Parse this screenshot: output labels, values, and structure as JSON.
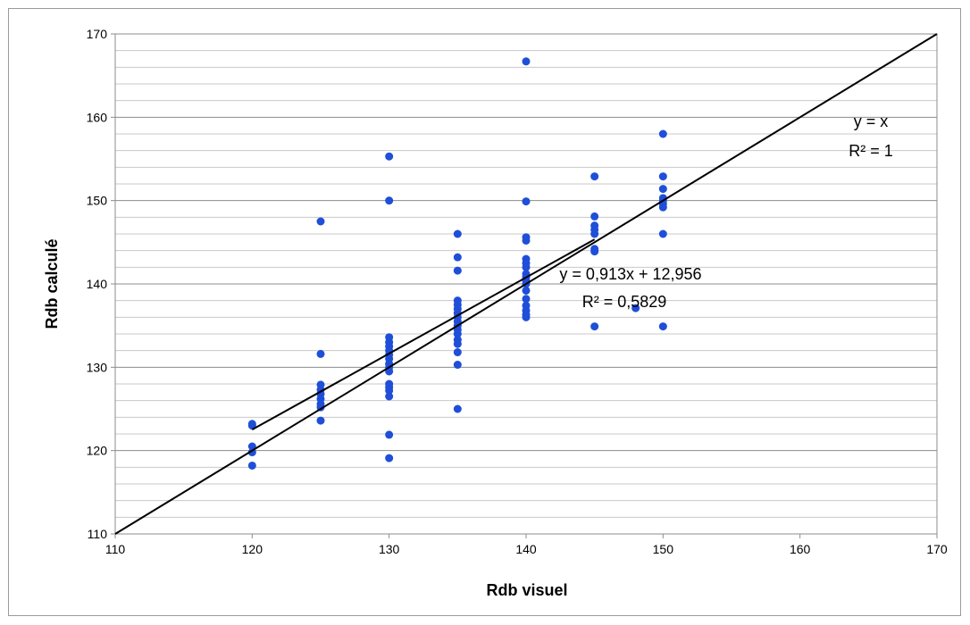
{
  "chart_data": {
    "type": "scatter",
    "xlabel": "Rdb visuel",
    "ylabel": "Rdb calculé",
    "xlim": [
      110,
      170
    ],
    "ylim": [
      110,
      170
    ],
    "x_ticks": [
      "110",
      "120",
      "130",
      "140",
      "150",
      "160",
      "170"
    ],
    "y_ticks": [
      "110",
      "120",
      "130",
      "140",
      "150",
      "160",
      "170"
    ],
    "y_major_step": 10,
    "y_minor_step": 2,
    "grid": true,
    "point_color": "#1f4fd8",
    "line_color": "#000000",
    "points": [
      [
        120,
        123.2
      ],
      [
        120,
        123.0
      ],
      [
        120,
        120.5
      ],
      [
        120,
        119.8
      ],
      [
        120,
        118.2
      ],
      [
        125,
        147.5
      ],
      [
        125,
        131.6
      ],
      [
        125,
        127.9
      ],
      [
        125,
        127.3
      ],
      [
        125,
        126.8
      ],
      [
        125,
        126.2
      ],
      [
        125,
        125.6
      ],
      [
        125,
        125.2
      ],
      [
        125,
        123.6
      ],
      [
        130,
        155.3
      ],
      [
        130,
        150.0
      ],
      [
        130,
        133.6
      ],
      [
        130,
        133.0
      ],
      [
        130,
        132.5
      ],
      [
        130,
        132.0
      ],
      [
        130,
        131.5
      ],
      [
        130,
        131.0
      ],
      [
        130,
        130.4
      ],
      [
        130,
        130.0
      ],
      [
        130,
        129.5
      ],
      [
        130,
        128.0
      ],
      [
        130,
        127.6
      ],
      [
        130,
        127.2
      ],
      [
        130,
        126.5
      ],
      [
        130,
        121.9
      ],
      [
        130,
        119.1
      ],
      [
        135,
        146.0
      ],
      [
        135,
        143.2
      ],
      [
        135,
        141.6
      ],
      [
        135,
        138.0
      ],
      [
        135,
        137.5
      ],
      [
        135,
        137.0
      ],
      [
        135,
        136.5
      ],
      [
        135,
        136.0
      ],
      [
        135,
        135.5
      ],
      [
        135,
        135.0
      ],
      [
        135,
        134.5
      ],
      [
        135,
        134.0
      ],
      [
        135,
        133.3
      ],
      [
        135,
        132.8
      ],
      [
        135,
        131.8
      ],
      [
        135,
        130.3
      ],
      [
        135,
        125.0
      ],
      [
        140,
        166.7
      ],
      [
        140,
        149.9
      ],
      [
        140,
        145.6
      ],
      [
        140,
        145.2
      ],
      [
        140,
        143.0
      ],
      [
        140,
        142.5
      ],
      [
        140,
        142.0
      ],
      [
        140,
        141.2
      ],
      [
        140,
        140.8
      ],
      [
        140,
        140.4
      ],
      [
        140,
        140.0
      ],
      [
        140,
        139.2
      ],
      [
        140,
        138.2
      ],
      [
        140,
        137.4
      ],
      [
        140,
        136.8
      ],
      [
        140,
        136.3
      ],
      [
        140,
        136.0
      ],
      [
        145,
        152.9
      ],
      [
        145,
        148.1
      ],
      [
        145,
        147.0
      ],
      [
        145,
        146.5
      ],
      [
        145,
        146.0
      ],
      [
        145,
        144.2
      ],
      [
        145,
        143.9
      ],
      [
        145,
        134.9
      ],
      [
        148,
        137.1
      ],
      [
        150,
        158.0
      ],
      [
        150,
        152.9
      ],
      [
        150,
        151.4
      ],
      [
        150,
        150.3
      ],
      [
        150,
        150.0
      ],
      [
        150,
        149.6
      ],
      [
        150,
        149.2
      ],
      [
        150,
        146.0
      ],
      [
        150,
        134.9
      ]
    ],
    "lines": [
      {
        "name": "y = x",
        "x": [
          110,
          170
        ],
        "y": [
          110,
          170
        ]
      },
      {
        "name": "y = 0,913x + 12,956",
        "x": [
          120,
          145
        ],
        "y": [
          122.516,
          145.341
        ]
      }
    ],
    "annotations": [
      {
        "lines": [
          "y = x",
          "R² = 1"
        ]
      },
      {
        "lines": [
          "y = 0,913x + 12,956",
          "R² = 0,5829"
        ]
      }
    ]
  }
}
